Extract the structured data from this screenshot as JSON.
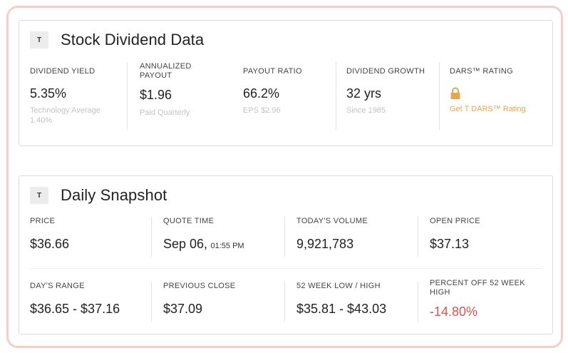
{
  "dividend": {
    "badge": "T",
    "title": "Stock Dividend Data",
    "yield": {
      "label": "DIVIDEND YIELD",
      "value": "5.35%",
      "sub": "Technology Average 1.40%"
    },
    "payout": {
      "label": "ANNUALIZED PAYOUT",
      "value": "$1.96",
      "sub": "Paid Quarterly"
    },
    "ratio": {
      "label": "PAYOUT RATIO",
      "value": "66.2%",
      "sub": "EPS $2.96"
    },
    "growth": {
      "label": "DIVIDEND GROWTH",
      "value": "32 yrs",
      "sub": "Since 1985"
    },
    "rating": {
      "label": "DARS™ RATING",
      "link": "Get T DARS™ Rating",
      "icon": "lock-icon",
      "accent": "#e8a44e"
    }
  },
  "snapshot": {
    "badge": "T",
    "title": "Daily Snapshot",
    "price": {
      "label": "PRICE",
      "value": "$36.66"
    },
    "quote_time": {
      "label": "QUOTE TIME",
      "date": "Sep 06,",
      "time": "01:55 PM"
    },
    "volume": {
      "label": "TODAY'S VOLUME",
      "value": "9,921,783"
    },
    "open": {
      "label": "OPEN PRICE",
      "value": "$37.13"
    },
    "range": {
      "label": "DAY'S RANGE",
      "value": "$36.65 - $37.16"
    },
    "prev_close": {
      "label": "PREVIOUS CLOSE",
      "value": "$37.09"
    },
    "week52": {
      "label": "52 WEEK LOW / HIGH",
      "value": "$35.81 - $43.03"
    },
    "pct_off": {
      "label": "PERCENT OFF 52 WEEK HIGH",
      "value": "-14.80%",
      "color": "#d9534f"
    }
  }
}
